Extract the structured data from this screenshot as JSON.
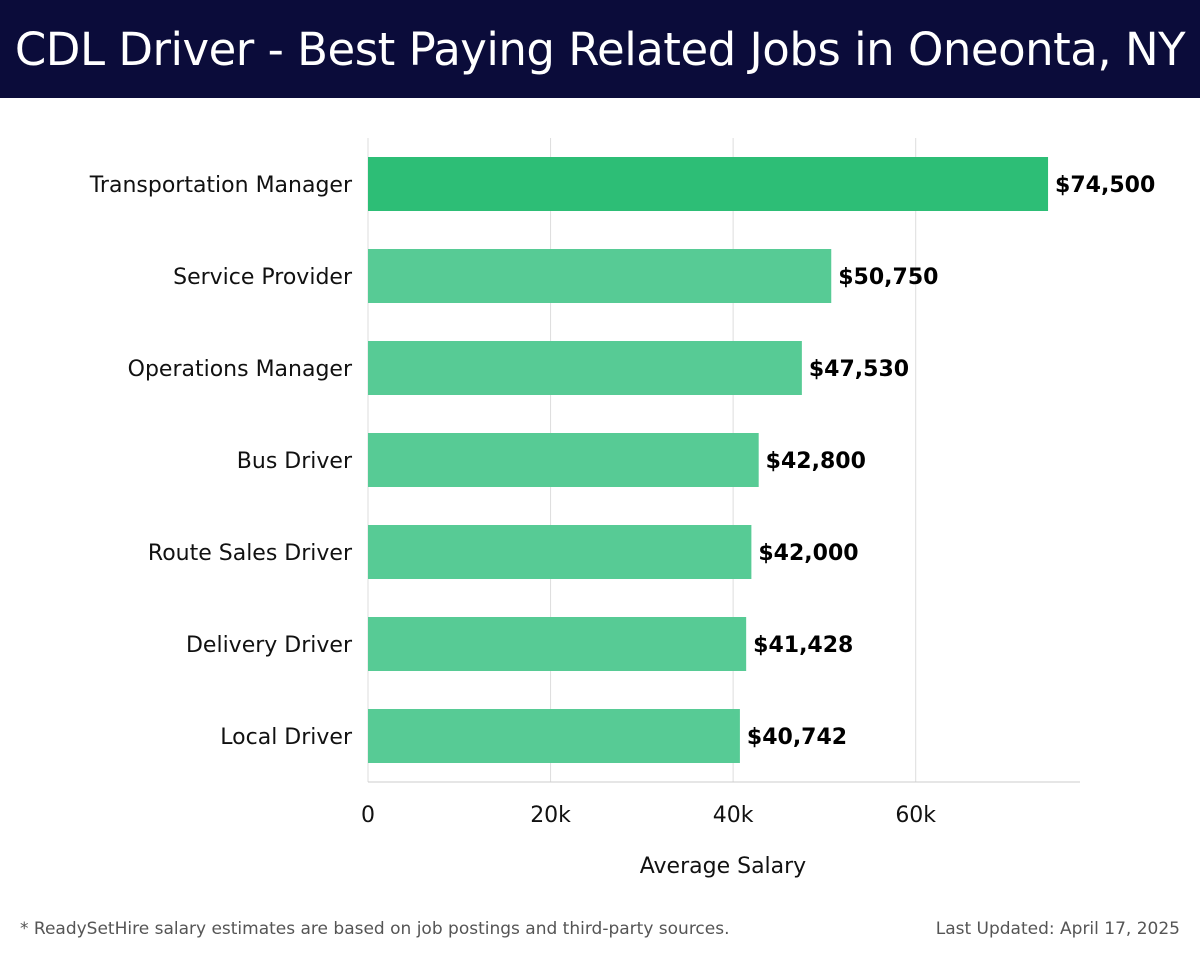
{
  "header": {
    "title": "CDL Driver - Best Paying Related Jobs in Oneonta, NY",
    "background": "#0b0c3a"
  },
  "chart_data": {
    "type": "bar",
    "orientation": "horizontal",
    "categories": [
      "Transportation Manager",
      "Service Provider",
      "Operations Manager",
      "Bus Driver",
      "Route Sales Driver",
      "Delivery Driver",
      "Local Driver"
    ],
    "values": [
      74500,
      50750,
      47530,
      42800,
      42000,
      41428,
      40742
    ],
    "value_labels": [
      "$74,500",
      "$50,750",
      "$47,530",
      "$42,800",
      "$42,000",
      "$41,428",
      "$40,742"
    ],
    "xlabel": "Average Salary",
    "ylabel": "",
    "xlim": [
      0,
      78000
    ],
    "xticks": [
      0,
      20000,
      40000,
      60000
    ],
    "xtick_labels": [
      "0",
      "20k",
      "40k",
      "60k"
    ],
    "grid": true,
    "colors": {
      "highlight": "#2dbe76",
      "bar": "#57cb95",
      "grid": "#dddddd",
      "axis": "#cccccc"
    }
  },
  "footer": {
    "note": "* ReadySetHire salary estimates are based on job postings and third-party sources.",
    "updated": "Last Updated: April 17, 2025"
  }
}
